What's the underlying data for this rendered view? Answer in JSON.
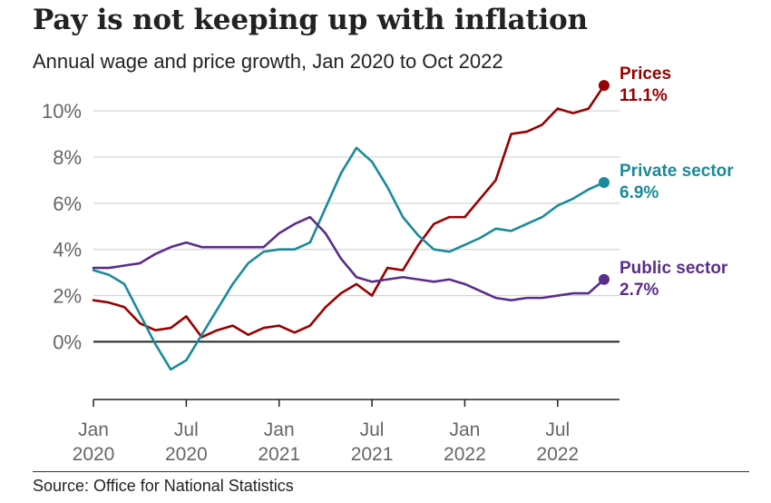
{
  "title": "Pay is not keeping up with inflation",
  "subtitle": "Annual wage and price growth, Jan 2020 to Oct 2022",
  "source": "Source: Office for National Statistics",
  "chart_data": {
    "type": "line",
    "ylim": [
      -2.5,
      11.5
    ],
    "yticks": [
      0,
      2,
      4,
      6,
      8,
      10
    ],
    "ytick_labels": [
      "0%",
      "2%",
      "4%",
      "6%",
      "8%",
      "10%"
    ],
    "grid": true,
    "xlim_months": [
      0,
      34
    ],
    "xticks": [
      {
        "month": 0,
        "line1": "Jan",
        "line2": "2020"
      },
      {
        "month": 6,
        "line1": "Jul",
        "line2": "2020"
      },
      {
        "month": 12,
        "line1": "Jan",
        "line2": "2021"
      },
      {
        "month": 18,
        "line1": "Jul",
        "line2": "2021"
      },
      {
        "month": 24,
        "line1": "Jan",
        "line2": "2022"
      },
      {
        "month": 30,
        "line1": "Jul",
        "line2": "2022"
      }
    ],
    "series": [
      {
        "name": "Prices",
        "end_label": "11.1%",
        "color": "#990000",
        "values": [
          1.8,
          1.7,
          1.5,
          0.8,
          0.5,
          0.6,
          1.1,
          0.2,
          0.5,
          0.7,
          0.3,
          0.6,
          0.7,
          0.4,
          0.7,
          1.5,
          2.1,
          2.5,
          2.0,
          3.2,
          3.1,
          4.2,
          5.1,
          5.4,
          5.4,
          6.2,
          7.0,
          9.0,
          9.1,
          9.4,
          10.1,
          9.9,
          10.1,
          11.1
        ]
      },
      {
        "name": "Private sector",
        "end_label": "6.9%",
        "color": "#1a8a9a",
        "values": [
          3.1,
          2.9,
          2.5,
          1.2,
          -0.1,
          -1.2,
          -0.8,
          0.3,
          1.4,
          2.5,
          3.4,
          3.9,
          4.0,
          4.0,
          4.3,
          5.8,
          7.3,
          8.4,
          7.8,
          6.7,
          5.4,
          4.6,
          4.0,
          3.9,
          4.2,
          4.5,
          4.9,
          4.8,
          5.1,
          5.4,
          5.9,
          6.2,
          6.6,
          6.9
        ]
      },
      {
        "name": "Public sector",
        "end_label": "2.7%",
        "color": "#5a2d8a",
        "values": [
          3.2,
          3.2,
          3.3,
          3.4,
          3.8,
          4.1,
          4.3,
          4.1,
          4.1,
          4.1,
          4.1,
          4.1,
          4.7,
          5.1,
          5.4,
          4.7,
          3.6,
          2.8,
          2.6,
          2.7,
          2.8,
          2.7,
          2.6,
          2.7,
          2.5,
          2.2,
          1.9,
          1.8,
          1.9,
          1.9,
          2.0,
          2.1,
          2.1,
          2.7
        ]
      }
    ]
  }
}
